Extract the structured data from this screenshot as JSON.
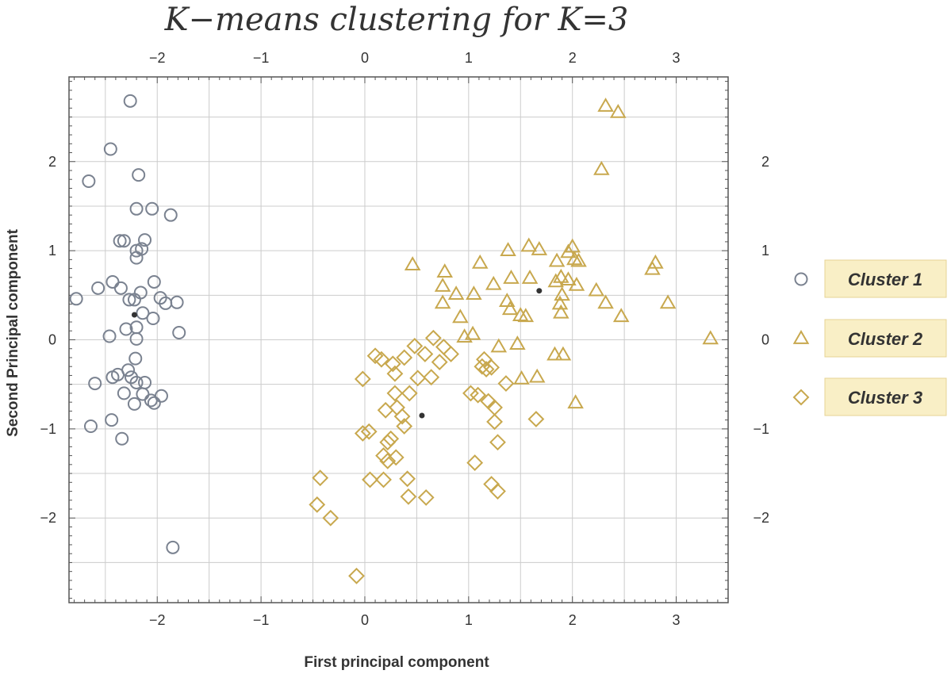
{
  "chart_data": {
    "type": "scatter",
    "title": "K−means clustering for K=3",
    "xlabel": "First principal component",
    "ylabel": "Second Principal component",
    "xlim": [
      -2.85,
      3.5
    ],
    "ylim": [
      -2.95,
      2.95
    ],
    "x_ticks": [
      -2,
      -1,
      0,
      1,
      2,
      3
    ],
    "x_tick_labels": [
      "−2",
      "−1",
      "0",
      "1",
      "2",
      "3"
    ],
    "y_ticks": [
      -2,
      -1,
      0,
      1,
      2
    ],
    "y_tick_labels": [
      "−2",
      "−1",
      "0",
      "1",
      "2"
    ],
    "grid": true,
    "legend_position": "right",
    "series": [
      {
        "name": "Cluster 1",
        "marker": "circle",
        "color": "#7a8290",
        "points": [
          [
            -2.26,
            2.68
          ],
          [
            -2.45,
            2.14
          ],
          [
            -2.66,
            1.78
          ],
          [
            -2.18,
            1.85
          ],
          [
            -2.2,
            1.47
          ],
          [
            -2.05,
            1.47
          ],
          [
            -1.87,
            1.4
          ],
          [
            -2.36,
            1.11
          ],
          [
            -2.32,
            1.11
          ],
          [
            -2.12,
            1.12
          ],
          [
            -2.2,
            1.0
          ],
          [
            -2.15,
            1.02
          ],
          [
            -2.2,
            0.92
          ],
          [
            -2.43,
            0.65
          ],
          [
            -2.03,
            0.65
          ],
          [
            -2.57,
            0.58
          ],
          [
            -2.35,
            0.58
          ],
          [
            -2.16,
            0.53
          ],
          [
            -1.97,
            0.47
          ],
          [
            -2.78,
            0.46
          ],
          [
            -2.27,
            0.45
          ],
          [
            -2.22,
            0.45
          ],
          [
            -1.92,
            0.41
          ],
          [
            -1.81,
            0.42
          ],
          [
            -2.14,
            0.3
          ],
          [
            -2.04,
            0.24
          ],
          [
            -2.3,
            0.12
          ],
          [
            -2.2,
            0.14
          ],
          [
            -1.79,
            0.08
          ],
          [
            -2.46,
            0.04
          ],
          [
            -2.2,
            0.01
          ],
          [
            -2.21,
            -0.21
          ],
          [
            -2.28,
            -0.34
          ],
          [
            -2.38,
            -0.39
          ],
          [
            -2.43,
            -0.42
          ],
          [
            -2.25,
            -0.42
          ],
          [
            -2.2,
            -0.48
          ],
          [
            -2.12,
            -0.48
          ],
          [
            -2.6,
            -0.49
          ],
          [
            -2.32,
            -0.6
          ],
          [
            -2.14,
            -0.61
          ],
          [
            -1.96,
            -0.63
          ],
          [
            -2.06,
            -0.68
          ],
          [
            -2.03,
            -0.71
          ],
          [
            -2.22,
            -0.72
          ],
          [
            -2.44,
            -0.9
          ],
          [
            -2.64,
            -0.97
          ],
          [
            -2.34,
            -1.11
          ],
          [
            -1.85,
            -2.33
          ]
        ]
      },
      {
        "name": "Cluster 2",
        "marker": "triangle",
        "color": "#c8a84e",
        "points": [
          [
            2.32,
            2.62
          ],
          [
            2.44,
            2.55
          ],
          [
            2.28,
            1.91
          ],
          [
            1.58,
            1.05
          ],
          [
            1.68,
            1.01
          ],
          [
            2.0,
            1.04
          ],
          [
            1.96,
            0.98
          ],
          [
            1.38,
            1.0
          ],
          [
            1.11,
            0.86
          ],
          [
            0.46,
            0.84
          ],
          [
            2.02,
            0.9
          ],
          [
            2.06,
            0.88
          ],
          [
            1.85,
            0.88
          ],
          [
            2.8,
            0.86
          ],
          [
            2.77,
            0.79
          ],
          [
            0.77,
            0.76
          ],
          [
            1.89,
            0.7
          ],
          [
            1.96,
            0.67
          ],
          [
            1.59,
            0.69
          ],
          [
            1.84,
            0.65
          ],
          [
            1.41,
            0.69
          ],
          [
            1.24,
            0.62
          ],
          [
            2.04,
            0.61
          ],
          [
            0.75,
            0.6
          ],
          [
            2.23,
            0.55
          ],
          [
            1.05,
            0.51
          ],
          [
            0.88,
            0.51
          ],
          [
            1.9,
            0.5
          ],
          [
            0.75,
            0.41
          ],
          [
            1.37,
            0.43
          ],
          [
            1.88,
            0.4
          ],
          [
            2.32,
            0.41
          ],
          [
            2.92,
            0.41
          ],
          [
            1.4,
            0.34
          ],
          [
            1.89,
            0.3
          ],
          [
            1.5,
            0.27
          ],
          [
            1.55,
            0.26
          ],
          [
            2.47,
            0.26
          ],
          [
            0.92,
            0.25
          ],
          [
            1.04,
            0.06
          ],
          [
            0.96,
            0.03
          ],
          [
            3.33,
            0.01
          ],
          [
            1.47,
            -0.05
          ],
          [
            1.29,
            -0.08
          ],
          [
            1.83,
            -0.17
          ],
          [
            1.91,
            -0.17
          ],
          [
            1.66,
            -0.42
          ],
          [
            1.51,
            -0.44
          ],
          [
            2.03,
            -0.71
          ]
        ]
      },
      {
        "name": "Cluster 3",
        "marker": "diamond",
        "color": "#c8a84e",
        "points": [
          [
            0.66,
            0.02
          ],
          [
            0.48,
            -0.07
          ],
          [
            0.76,
            -0.08
          ],
          [
            0.58,
            -0.16
          ],
          [
            0.83,
            -0.16
          ],
          [
            0.1,
            -0.18
          ],
          [
            0.16,
            -0.22
          ],
          [
            0.38,
            -0.2
          ],
          [
            0.27,
            -0.27
          ],
          [
            1.15,
            -0.22
          ],
          [
            0.72,
            -0.25
          ],
          [
            0.64,
            -0.42
          ],
          [
            0.51,
            -0.43
          ],
          [
            0.29,
            -0.38
          ],
          [
            1.17,
            -0.33
          ],
          [
            1.13,
            -0.3
          ],
          [
            1.22,
            -0.31
          ],
          [
            -0.02,
            -0.44
          ],
          [
            1.36,
            -0.49
          ],
          [
            0.43,
            -0.6
          ],
          [
            0.29,
            -0.6
          ],
          [
            1.02,
            -0.6
          ],
          [
            1.09,
            -0.62
          ],
          [
            1.19,
            -0.69
          ],
          [
            0.2,
            -0.79
          ],
          [
            0.31,
            -0.76
          ],
          [
            1.25,
            -0.76
          ],
          [
            0.36,
            -0.86
          ],
          [
            1.65,
            -0.89
          ],
          [
            1.25,
            -0.92
          ],
          [
            0.38,
            -0.97
          ],
          [
            -0.02,
            -1.05
          ],
          [
            0.04,
            -1.03
          ],
          [
            0.25,
            -1.11
          ],
          [
            0.22,
            -1.15
          ],
          [
            1.28,
            -1.15
          ],
          [
            0.18,
            -1.3
          ],
          [
            0.3,
            -1.32
          ],
          [
            1.06,
            -1.38
          ],
          [
            0.22,
            -1.36
          ],
          [
            0.41,
            -1.56
          ],
          [
            -0.43,
            -1.55
          ],
          [
            0.05,
            -1.57
          ],
          [
            0.18,
            -1.57
          ],
          [
            1.22,
            -1.62
          ],
          [
            1.28,
            -1.7
          ],
          [
            0.42,
            -1.76
          ],
          [
            0.59,
            -1.77
          ],
          [
            -0.46,
            -1.85
          ],
          [
            -0.33,
            -2.0
          ],
          [
            -0.08,
            -2.65
          ]
        ]
      }
    ],
    "centroids": [
      [
        -2.22,
        0.28
      ],
      [
        1.68,
        0.55
      ],
      [
        0.55,
        -0.85
      ]
    ],
    "centroid_color": "#333333"
  },
  "colors": {
    "frame": "#555555",
    "grid": "#cccccc",
    "legend_bg": "#f9efc6",
    "legend_border": "#e6d394"
  }
}
